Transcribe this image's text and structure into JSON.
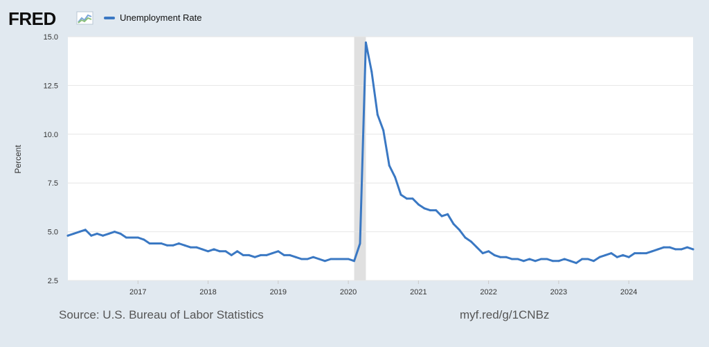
{
  "header": {
    "logo_text": "FRED",
    "logo_icon": "fred-graph-icon"
  },
  "legend": {
    "label": "Unemployment Rate"
  },
  "footer": {
    "source": "Source: U.S. Bureau of Labor Statistics",
    "shortlink": "myf.red/g/1CNBz"
  },
  "colors": {
    "page_background": "#e1e9f0",
    "plot_background": "#ffffff",
    "series_line": "#3a78c3",
    "gridline": "#e6e6e6",
    "recession_shade": "#e0e0e0"
  },
  "chart_data": {
    "type": "line",
    "title": "",
    "xlabel": "",
    "ylabel": "Percent",
    "ylim": [
      2.5,
      15.0
    ],
    "yticks": [
      "2.5",
      "5.0",
      "7.5",
      "10.0",
      "12.5",
      "15.0"
    ],
    "xticks": [
      "2017",
      "2018",
      "2019",
      "2020",
      "2021",
      "2022",
      "2023",
      "2024"
    ],
    "grid": true,
    "legend_position": "top-left",
    "recession": {
      "start": "2020-02",
      "end": "2020-04"
    },
    "x": [
      "2016-01",
      "2016-02",
      "2016-03",
      "2016-04",
      "2016-05",
      "2016-06",
      "2016-07",
      "2016-08",
      "2016-09",
      "2016-10",
      "2016-11",
      "2016-12",
      "2017-01",
      "2017-02",
      "2017-03",
      "2017-04",
      "2017-05",
      "2017-06",
      "2017-07",
      "2017-08",
      "2017-09",
      "2017-10",
      "2017-11",
      "2017-12",
      "2018-01",
      "2018-02",
      "2018-03",
      "2018-04",
      "2018-05",
      "2018-06",
      "2018-07",
      "2018-08",
      "2018-09",
      "2018-10",
      "2018-11",
      "2018-12",
      "2019-01",
      "2019-02",
      "2019-03",
      "2019-04",
      "2019-05",
      "2019-06",
      "2019-07",
      "2019-08",
      "2019-09",
      "2019-10",
      "2019-11",
      "2019-12",
      "2020-01",
      "2020-02",
      "2020-03",
      "2020-04",
      "2020-05",
      "2020-06",
      "2020-07",
      "2020-08",
      "2020-09",
      "2020-10",
      "2020-11",
      "2020-12",
      "2021-01",
      "2021-02",
      "2021-03",
      "2021-04",
      "2021-05",
      "2021-06",
      "2021-07",
      "2021-08",
      "2021-09",
      "2021-10",
      "2021-11",
      "2021-12",
      "2022-01",
      "2022-02",
      "2022-03",
      "2022-04",
      "2022-05",
      "2022-06",
      "2022-07",
      "2022-08",
      "2022-09",
      "2022-10",
      "2022-11",
      "2022-12",
      "2023-01",
      "2023-02",
      "2023-03",
      "2023-04",
      "2023-05",
      "2023-06",
      "2023-07",
      "2023-08",
      "2023-09",
      "2023-10",
      "2023-11",
      "2023-12",
      "2024-01",
      "2024-02",
      "2024-03",
      "2024-04",
      "2024-05",
      "2024-06",
      "2024-07",
      "2024-08",
      "2024-09",
      "2024-10",
      "2024-11",
      "2024-12"
    ],
    "series": [
      {
        "values": [
          4.8,
          4.9,
          5.0,
          5.1,
          4.8,
          4.9,
          4.8,
          4.9,
          5.0,
          4.9,
          4.7,
          4.7,
          4.7,
          4.6,
          4.4,
          4.4,
          4.4,
          4.3,
          4.3,
          4.4,
          4.3,
          4.2,
          4.2,
          4.1,
          4.0,
          4.1,
          4.0,
          4.0,
          3.8,
          4.0,
          3.8,
          3.8,
          3.7,
          3.8,
          3.8,
          3.9,
          4.0,
          3.8,
          3.8,
          3.7,
          3.6,
          3.6,
          3.7,
          3.6,
          3.5,
          3.6,
          3.6,
          3.6,
          3.6,
          3.5,
          4.4,
          14.7,
          13.2,
          11.0,
          10.2,
          8.4,
          7.8,
          6.9,
          6.7,
          6.7,
          6.4,
          6.2,
          6.1,
          6.1,
          5.8,
          5.9,
          5.4,
          5.1,
          4.7,
          4.5,
          4.2,
          3.9,
          4.0,
          3.8,
          3.7,
          3.7,
          3.6,
          3.6,
          3.5,
          3.6,
          3.5,
          3.6,
          3.6,
          3.5,
          3.5,
          3.6,
          3.5,
          3.4,
          3.6,
          3.6,
          3.5,
          3.7,
          3.8,
          3.9,
          3.7,
          3.8,
          3.7,
          3.9,
          3.9,
          3.9,
          4.0,
          4.1,
          4.2,
          4.2,
          4.1,
          4.1,
          4.2,
          4.1
        ]
      }
    ]
  }
}
